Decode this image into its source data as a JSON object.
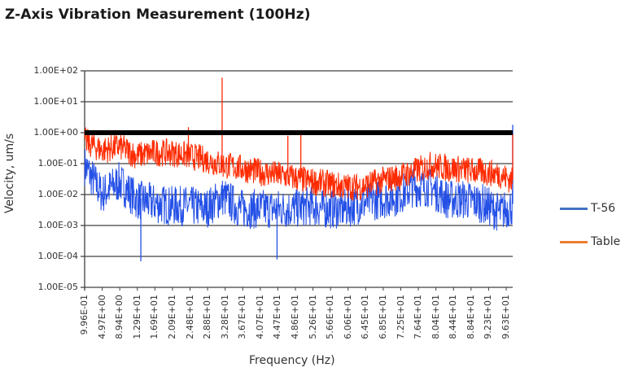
{
  "chart_data": {
    "type": "line",
    "title": "Z-Axis Vibration Measurement (100Hz)",
    "xlabel": "Frequency (Hz)",
    "ylabel": "Velocity, um/s",
    "yscale": "log",
    "ylim": [
      1e-05,
      100
    ],
    "grid": true,
    "legend_position": "right",
    "y_tick_labels": [
      "1.00E+02",
      "1.00E+01",
      "1.00E+00",
      "1.00E-01",
      "1.00E-02",
      "1.00E-03",
      "1.00E-04",
      "1.00E-05"
    ],
    "x_tick_labels": [
      "9.96E-01",
      "4.97E+00",
      "8.94E+00",
      "1.29E+01",
      "1.69E+01",
      "2.09E+01",
      "2.48E+01",
      "2.88E+01",
      "3.28E+01",
      "3.67E+01",
      "4.07E+01",
      "4.47E+01",
      "4.86E+01",
      "5.26E+01",
      "5.66E+01",
      "6.06E+01",
      "6.45E+01",
      "6.85E+01",
      "7.25E+01",
      "7.64E+01",
      "8.04E+01",
      "8.44E+01",
      "8.84E+01",
      "9.23E+01",
      "9.63E+01"
    ],
    "annotations": [
      {
        "type": "reference_line",
        "y": 1.0,
        "style": "thick black"
      }
    ],
    "x": [
      1,
      5,
      9,
      13,
      17,
      21,
      25,
      29,
      33,
      37,
      41,
      45,
      49,
      53,
      57,
      61,
      65,
      69,
      73,
      77,
      81,
      85,
      89,
      93,
      97,
      100
    ],
    "series": [
      {
        "name": "T-56",
        "color": "#2450e6",
        "values": [
          0.1,
          0.012,
          0.03,
          0.008,
          0.006,
          0.005,
          0.005,
          0.004,
          0.01,
          0.004,
          0.004,
          0.004,
          0.004,
          0.005,
          0.004,
          0.004,
          0.006,
          0.008,
          0.01,
          0.02,
          0.02,
          0.008,
          0.008,
          0.006,
          0.003,
          0.005
        ],
        "spikes": [
          {
            "x": 14.0,
            "y": 7e-05
          },
          {
            "x": 45.5,
            "y": 8e-05
          },
          {
            "x": 100,
            "y": 1.8
          }
        ]
      },
      {
        "name": "Table",
        "color": "#ff2a00",
        "values": [
          0.6,
          0.3,
          0.4,
          0.2,
          0.25,
          0.25,
          0.2,
          0.15,
          0.1,
          0.08,
          0.06,
          0.05,
          0.04,
          0.03,
          0.025,
          0.02,
          0.02,
          0.03,
          0.04,
          0.06,
          0.1,
          0.08,
          0.07,
          0.06,
          0.05,
          0.03
        ],
        "spikes": [
          {
            "x": 32.8,
            "y": 60
          },
          {
            "x": 25.0,
            "y": 1.5
          },
          {
            "x": 48.0,
            "y": 0.8
          },
          {
            "x": 51.0,
            "y": 1.0
          },
          {
            "x": 100,
            "y": 0.9
          }
        ]
      }
    ]
  }
}
